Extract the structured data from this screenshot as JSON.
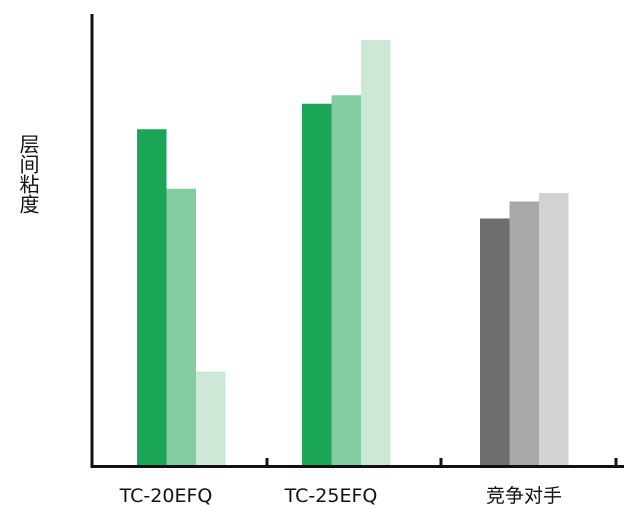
{
  "chart_data": {
    "type": "bar",
    "title": "",
    "xlabel": "",
    "ylabel": "层间粘度",
    "categories": [
      "TC-20EFQ",
      "TC-25EFQ",
      "竞争对手"
    ],
    "bars_per_category": 3,
    "ylim": [
      0,
      100
    ],
    "y_ticks_shown": false,
    "grid": false,
    "legend": "none",
    "groups": [
      {
        "category": "TC-20EFQ",
        "values": [
          79,
          65,
          22
        ],
        "colors": [
          "#1aa557",
          "#82cc9f",
          "#cde8d6"
        ]
      },
      {
        "category": "TC-25EFQ",
        "values": [
          85,
          87,
          100
        ],
        "colors": [
          "#1aa557",
          "#82cc9f",
          "#cde8d6"
        ]
      },
      {
        "category": "竞争对手",
        "values": [
          58,
          62,
          64
        ],
        "colors": [
          "#6d6e70",
          "#a7a8aa",
          "#d1d2d3"
        ]
      }
    ]
  }
}
